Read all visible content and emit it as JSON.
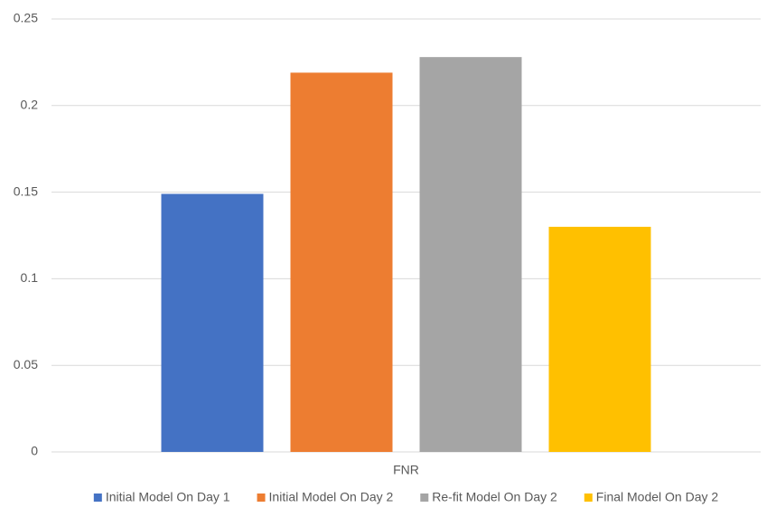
{
  "chart_data": {
    "type": "bar",
    "categories": [
      "FNR"
    ],
    "series": [
      {
        "name": "Initial Model On Day 1",
        "color": "#4472c4",
        "values": [
          0.149
        ]
      },
      {
        "name": "Initial Model On Day 2",
        "color": "#ed7d31",
        "values": [
          0.219
        ]
      },
      {
        "name": "Re-fit Model On Day 2",
        "color": "#a5a5a5",
        "values": [
          0.228
        ]
      },
      {
        "name": "Final Model On Day 2",
        "color": "#ffc000",
        "values": [
          0.13
        ]
      }
    ],
    "ylim": [
      0,
      0.25
    ],
    "yticks": [
      0,
      0.05,
      0.1,
      0.15,
      0.2,
      0.25
    ],
    "grid": true,
    "legend": "bottom"
  }
}
